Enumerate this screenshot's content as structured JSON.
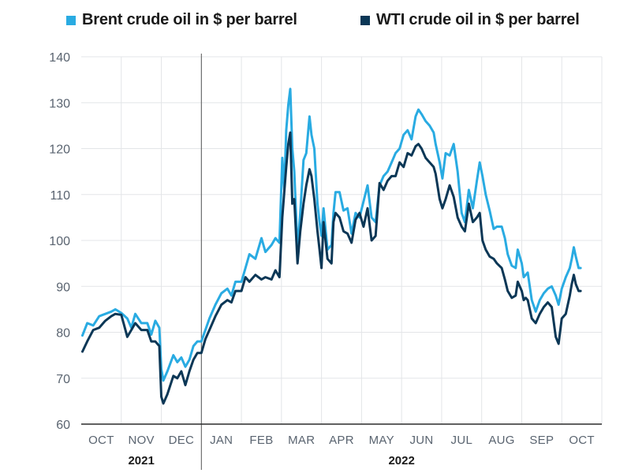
{
  "colors": {
    "brent": "#29abe2",
    "wti": "#0b3756",
    "grid": "#e3e5e8",
    "axis": "#2b2b2b"
  },
  "chart_data": {
    "type": "line",
    "title": "",
    "xlabel": "",
    "ylabel": "",
    "ylim": [
      60,
      140
    ],
    "yticks": [
      60,
      70,
      80,
      90,
      100,
      110,
      120,
      130,
      140
    ],
    "grid": true,
    "legend_position": "top",
    "months": [
      "OCT",
      "NOV",
      "DEC",
      "JAN",
      "FEB",
      "MAR",
      "APR",
      "MAY",
      "JUN",
      "JUL",
      "AUG",
      "SEP",
      "OCT"
    ],
    "years": [
      {
        "label": "2021",
        "first_month": 0,
        "last_month": 2
      },
      {
        "label": "2022",
        "first_month": 3,
        "last_month": 12
      }
    ],
    "x_unit": "month index (0 = start of Oct 2021)",
    "series": [
      {
        "name": "Brent crude oil in $ per barrel",
        "color_key": "brent",
        "points": [
          [
            0.03,
            79.3
          ],
          [
            0.15,
            82
          ],
          [
            0.3,
            81.5
          ],
          [
            0.45,
            83.5
          ],
          [
            0.6,
            84
          ],
          [
            0.75,
            84.5
          ],
          [
            0.85,
            85
          ],
          [
            1.0,
            84.2
          ],
          [
            1.15,
            83
          ],
          [
            1.25,
            81
          ],
          [
            1.35,
            84
          ],
          [
            1.5,
            82
          ],
          [
            1.65,
            82
          ],
          [
            1.75,
            79.5
          ],
          [
            1.85,
            82.5
          ],
          [
            1.95,
            81
          ],
          [
            2.0,
            72
          ],
          [
            2.05,
            69.5
          ],
          [
            2.15,
            71.5
          ],
          [
            2.3,
            75
          ],
          [
            2.4,
            73.5
          ],
          [
            2.5,
            74.5
          ],
          [
            2.6,
            72.5
          ],
          [
            2.7,
            74
          ],
          [
            2.8,
            77
          ],
          [
            2.9,
            78
          ],
          [
            3.0,
            78
          ],
          [
            3.1,
            80.5
          ],
          [
            3.2,
            83
          ],
          [
            3.35,
            86
          ],
          [
            3.5,
            88.5
          ],
          [
            3.65,
            89.5
          ],
          [
            3.75,
            88
          ],
          [
            3.85,
            91
          ],
          [
            4.0,
            91
          ],
          [
            4.1,
            94
          ],
          [
            4.2,
            97
          ],
          [
            4.35,
            96
          ],
          [
            4.5,
            100.5
          ],
          [
            4.6,
            97.5
          ],
          [
            4.75,
            99
          ],
          [
            4.85,
            100.5
          ],
          [
            4.95,
            99.5
          ],
          [
            5.02,
            118
          ],
          [
            5.07,
            111
          ],
          [
            5.12,
            124
          ],
          [
            5.17,
            129.5
          ],
          [
            5.22,
            133
          ],
          [
            5.27,
            120
          ],
          [
            5.32,
            115
          ],
          [
            5.4,
            98
          ],
          [
            5.47,
            106
          ],
          [
            5.55,
            117.5
          ],
          [
            5.62,
            119
          ],
          [
            5.7,
            127
          ],
          [
            5.75,
            123
          ],
          [
            5.82,
            120
          ],
          [
            5.9,
            108
          ],
          [
            5.95,
            104
          ],
          [
            6.0,
            101
          ],
          [
            6.05,
            107
          ],
          [
            6.15,
            98
          ],
          [
            6.25,
            99
          ],
          [
            6.3,
            106
          ],
          [
            6.35,
            110.5
          ],
          [
            6.45,
            110.5
          ],
          [
            6.55,
            106.5
          ],
          [
            6.65,
            107
          ],
          [
            6.75,
            101.5
          ],
          [
            6.85,
            106
          ],
          [
            6.95,
            105
          ],
          [
            7.05,
            108.5
          ],
          [
            7.15,
            112
          ],
          [
            7.25,
            105
          ],
          [
            7.35,
            104
          ],
          [
            7.45,
            112
          ],
          [
            7.55,
            114
          ],
          [
            7.65,
            115
          ],
          [
            7.75,
            117
          ],
          [
            7.85,
            119
          ],
          [
            7.95,
            120
          ],
          [
            8.05,
            123
          ],
          [
            8.15,
            124
          ],
          [
            8.25,
            122
          ],
          [
            8.35,
            127
          ],
          [
            8.42,
            128.5
          ],
          [
            8.5,
            127.5
          ],
          [
            8.6,
            126
          ],
          [
            8.7,
            125
          ],
          [
            8.8,
            123.5
          ],
          [
            8.85,
            121
          ],
          [
            8.95,
            117
          ],
          [
            9.02,
            113.5
          ],
          [
            9.1,
            119
          ],
          [
            9.2,
            118.5
          ],
          [
            9.3,
            121
          ],
          [
            9.4,
            115
          ],
          [
            9.5,
            106
          ],
          [
            9.58,
            104
          ],
          [
            9.68,
            111
          ],
          [
            9.78,
            107
          ],
          [
            9.88,
            113
          ],
          [
            9.95,
            117
          ],
          [
            10.02,
            114
          ],
          [
            10.1,
            110
          ],
          [
            10.2,
            106.5
          ],
          [
            10.3,
            102.5
          ],
          [
            10.38,
            103
          ],
          [
            10.5,
            103
          ],
          [
            10.58,
            100.5
          ],
          [
            10.65,
            97
          ],
          [
            10.75,
            94.5
          ],
          [
            10.85,
            94
          ],
          [
            10.9,
            98
          ],
          [
            11.0,
            95
          ],
          [
            11.05,
            92
          ],
          [
            11.1,
            92.5
          ],
          [
            11.15,
            93
          ],
          [
            11.25,
            87
          ],
          [
            11.35,
            84.5
          ],
          [
            11.45,
            87
          ],
          [
            11.55,
            88.5
          ],
          [
            11.65,
            89.5
          ],
          [
            11.75,
            90
          ],
          [
            11.85,
            88
          ],
          [
            11.92,
            86
          ],
          [
            12.0,
            89.5
          ],
          [
            12.1,
            92
          ],
          [
            12.2,
            94
          ],
          [
            12.25,
            96
          ],
          [
            12.3,
            98.5
          ],
          [
            12.35,
            96.5
          ],
          [
            12.42,
            94
          ],
          [
            12.47,
            94
          ]
        ]
      },
      {
        "name": "WTI crude oil in $ per barrel",
        "color_key": "wti",
        "points": [
          [
            0.03,
            75.8
          ],
          [
            0.15,
            78
          ],
          [
            0.3,
            80.5
          ],
          [
            0.45,
            81
          ],
          [
            0.6,
            82.5
          ],
          [
            0.75,
            83.5
          ],
          [
            0.85,
            84
          ],
          [
            1.0,
            83.8
          ],
          [
            1.15,
            79
          ],
          [
            1.25,
            80.5
          ],
          [
            1.35,
            82
          ],
          [
            1.5,
            80.5
          ],
          [
            1.65,
            80.5
          ],
          [
            1.75,
            78
          ],
          [
            1.85,
            78
          ],
          [
            1.95,
            77
          ],
          [
            2.0,
            66
          ],
          [
            2.05,
            64.5
          ],
          [
            2.15,
            66.5
          ],
          [
            2.3,
            70.5
          ],
          [
            2.4,
            70
          ],
          [
            2.5,
            71.5
          ],
          [
            2.6,
            68.5
          ],
          [
            2.7,
            71.5
          ],
          [
            2.8,
            74
          ],
          [
            2.9,
            75.5
          ],
          [
            3.0,
            75.5
          ],
          [
            3.1,
            78.5
          ],
          [
            3.2,
            80.5
          ],
          [
            3.35,
            83.5
          ],
          [
            3.5,
            86
          ],
          [
            3.65,
            87
          ],
          [
            3.75,
            86.5
          ],
          [
            3.85,
            89
          ],
          [
            4.0,
            89
          ],
          [
            4.1,
            92
          ],
          [
            4.2,
            91
          ],
          [
            4.35,
            92.5
          ],
          [
            4.5,
            91.5
          ],
          [
            4.6,
            92
          ],
          [
            4.75,
            91.5
          ],
          [
            4.85,
            93.5
          ],
          [
            4.95,
            92
          ],
          [
            5.02,
            105
          ],
          [
            5.07,
            110.5
          ],
          [
            5.12,
            116
          ],
          [
            5.17,
            121
          ],
          [
            5.22,
            123.5
          ],
          [
            5.27,
            108
          ],
          [
            5.32,
            109
          ],
          [
            5.4,
            95
          ],
          [
            5.47,
            102
          ],
          [
            5.55,
            108
          ],
          [
            5.62,
            112
          ],
          [
            5.7,
            115.5
          ],
          [
            5.75,
            114
          ],
          [
            5.82,
            109
          ],
          [
            5.9,
            102
          ],
          [
            5.95,
            98
          ],
          [
            6.0,
            94
          ],
          [
            6.05,
            104
          ],
          [
            6.15,
            96
          ],
          [
            6.25,
            95
          ],
          [
            6.3,
            104
          ],
          [
            6.35,
            106
          ],
          [
            6.45,
            105
          ],
          [
            6.55,
            102
          ],
          [
            6.65,
            101.5
          ],
          [
            6.75,
            99.5
          ],
          [
            6.85,
            104.5
          ],
          [
            6.95,
            106
          ],
          [
            7.05,
            103
          ],
          [
            7.15,
            107
          ],
          [
            7.25,
            100
          ],
          [
            7.35,
            101
          ],
          [
            7.45,
            112.5
          ],
          [
            7.55,
            111
          ],
          [
            7.65,
            113
          ],
          [
            7.75,
            114
          ],
          [
            7.85,
            114
          ],
          [
            7.95,
            117
          ],
          [
            8.05,
            116
          ],
          [
            8.15,
            119
          ],
          [
            8.25,
            118.5
          ],
          [
            8.35,
            120.5
          ],
          [
            8.42,
            121
          ],
          [
            8.5,
            120
          ],
          [
            8.6,
            118
          ],
          [
            8.7,
            117
          ],
          [
            8.8,
            116
          ],
          [
            8.85,
            114.5
          ],
          [
            8.95,
            109
          ],
          [
            9.02,
            107
          ],
          [
            9.1,
            109
          ],
          [
            9.2,
            112
          ],
          [
            9.3,
            109.5
          ],
          [
            9.4,
            105
          ],
          [
            9.5,
            103
          ],
          [
            9.58,
            102
          ],
          [
            9.68,
            108
          ],
          [
            9.78,
            104
          ],
          [
            9.88,
            105
          ],
          [
            9.95,
            106
          ],
          [
            10.02,
            100
          ],
          [
            10.1,
            98
          ],
          [
            10.2,
            96.5
          ],
          [
            10.3,
            96
          ],
          [
            10.38,
            95
          ],
          [
            10.5,
            94
          ],
          [
            10.58,
            91.5
          ],
          [
            10.65,
            89
          ],
          [
            10.75,
            87.5
          ],
          [
            10.85,
            88
          ],
          [
            10.9,
            91
          ],
          [
            11.0,
            89
          ],
          [
            11.05,
            87
          ],
          [
            11.1,
            87.5
          ],
          [
            11.15,
            87
          ],
          [
            11.25,
            83
          ],
          [
            11.35,
            82
          ],
          [
            11.45,
            84
          ],
          [
            11.55,
            85.5
          ],
          [
            11.65,
            86.5
          ],
          [
            11.75,
            85.5
          ],
          [
            11.85,
            79
          ],
          [
            11.92,
            77.5
          ],
          [
            12.0,
            83
          ],
          [
            12.1,
            84
          ],
          [
            12.2,
            88
          ],
          [
            12.25,
            90.5
          ],
          [
            12.3,
            92.5
          ],
          [
            12.35,
            90.5
          ],
          [
            12.42,
            89
          ],
          [
            12.47,
            89
          ]
        ]
      }
    ]
  }
}
